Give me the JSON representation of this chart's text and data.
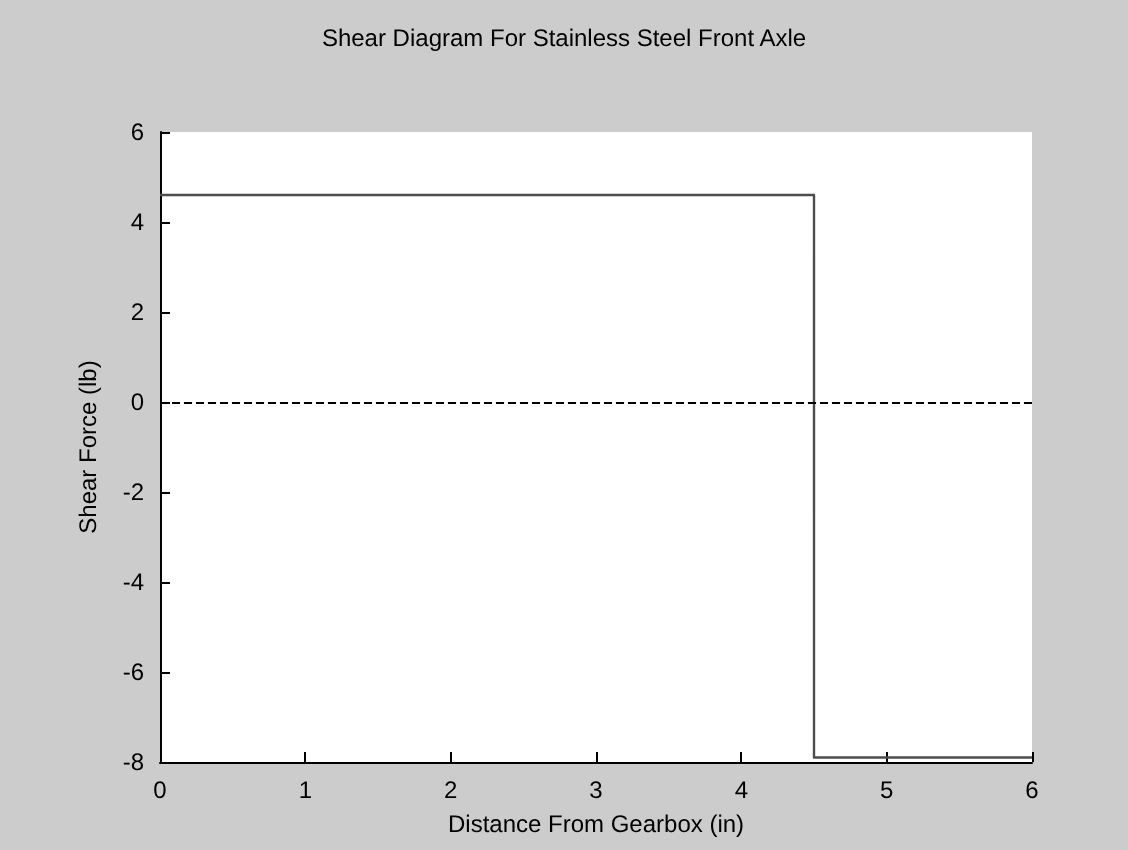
{
  "chart_data": {
    "type": "step",
    "title": "Shear Diagram For Stainless Steel Front Axle",
    "xlabel": "Distance From Gearbox (in)",
    "ylabel": "Shear Force (lb)",
    "x": [
      0,
      4.5,
      6
    ],
    "series": [
      {
        "color": "#4d4d4d",
        "values": [
          4.6,
          -7.9,
          -7.9
        ]
      }
    ],
    "xlim": [
      0,
      6
    ],
    "xticks": [
      0,
      1,
      2,
      3,
      4,
      5,
      6
    ],
    "ylim": [
      -8,
      6
    ],
    "yticks": [
      -8,
      -6,
      -4,
      -2,
      0,
      2,
      4,
      6
    ],
    "ref_lines": [
      {
        "axis": "y",
        "value": 0,
        "label": null,
        "color": "#000000",
        "line_style": "dashed"
      }
    ],
    "tick_labels": true
  }
}
